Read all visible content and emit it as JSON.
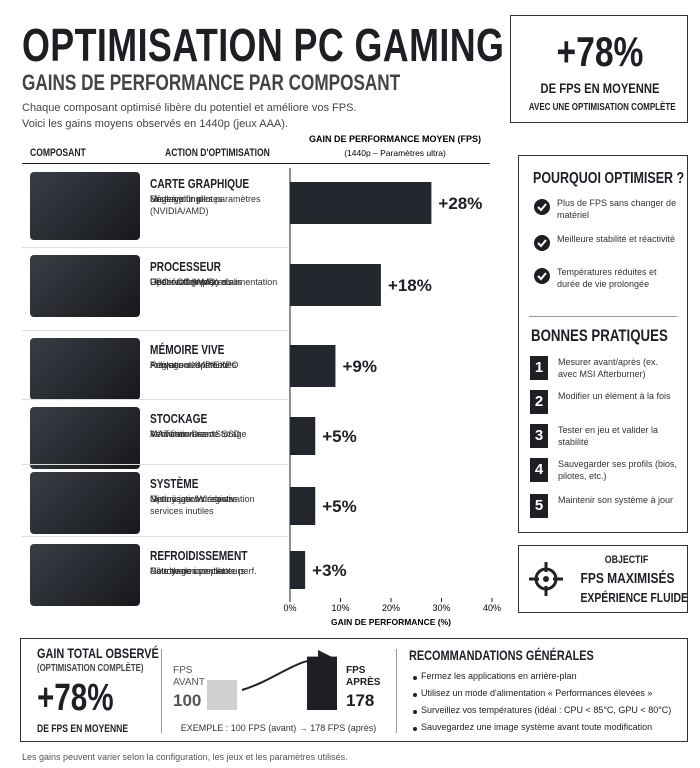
{
  "header": {
    "title": "OPTIMISATION PC GAMING",
    "subtitle": "GAINS DE PERFORMANCE PAR COMPOSANT",
    "intro": [
      "Chaque composant optimisé libère du potentiel et améliore vos FPS.",
      "Voici les gains moyens observés en 1440p (jeux AAA)."
    ]
  },
  "highlight": {
    "value": "+78%",
    "label": "DE FPS EN MOYENNE",
    "note": "AVEC UNE OPTIMISATION COMPLÈTE"
  },
  "columns": {
    "component": "COMPOSANT",
    "action": "ACTION D'OPTIMISATION"
  },
  "components": [
    {
      "actions": [
        "Mise à jour pilotes",
        "Réglage fin des paramètres (NVIDIA/AMD)",
        "Undervolting"
      ]
    },
    {
      "actions": [
        "Optimisation plan d'alimentation",
        "PBO / CO (AMD) ou",
        "Undervolt (Intel)",
        "Gestion des processus"
      ]
    },
    {
      "actions": [
        "Activation XMP/EXPO",
        "Réglage des latences",
        "Fréquence optimale"
      ]
    },
    {
      "actions": [
        "Vérification santé SSD",
        "MAJ firmware",
        "Activation DirectStorage"
      ]
    },
    {
      "actions": [
        "Nettoyage & désactivation services inutiles",
        "Mise à jour Windows",
        "Optimisations registre"
      ]
    },
    {
      "actions": [
        "Nettoyage complet",
        "Pâte thermique haute perf.",
        "Courbe des ventilateurs"
      ]
    }
  ],
  "chart_data": {
    "type": "bar",
    "orientation": "horizontal",
    "title": "GAIN DE PERFORMANCE MOYEN (FPS)",
    "subtitle": "(1440p – Paramètres ultra)",
    "categories": [
      "CARTE GRAPHIQUE",
      "PROCESSEUR",
      "MÉMOIRE VIVE",
      "STOCKAGE",
      "SYSTÈME",
      "REFROIDISSEMENT"
    ],
    "values": [
      28,
      18,
      9,
      5,
      5,
      3
    ],
    "value_labels": [
      "+28%",
      "+18%",
      "+9%",
      "+5%",
      "+5%",
      "+3%"
    ],
    "color": "#23262d",
    "xlim": [
      0,
      40
    ],
    "xticks": [
      {
        "value": 0,
        "label": "0%"
      },
      {
        "value": 10,
        "label": "10%"
      },
      {
        "value": 20,
        "label": "20%"
      },
      {
        "value": 30,
        "label": "30%"
      },
      {
        "value": 40,
        "label": "40%"
      }
    ],
    "xlabel": "GAIN DE PERFORMANCE (%)"
  },
  "why": {
    "title": "POURQUOI OPTIMISER ?",
    "items": [
      "Plus de FPS sans changer de matériel",
      "Meilleure stabilité et réactivité",
      "Températures réduites et durée de vie prolongée"
    ]
  },
  "practices": {
    "title": "BONNES PRATIQUES",
    "items": [
      {
        "number": 1,
        "text": "Mesurer avant/après (ex. avec MSI Afterburner)"
      },
      {
        "number": 2,
        "text": "Modifier un élément à la fois"
      },
      {
        "number": 3,
        "text": "Tester en jeu et valider la stabilité"
      },
      {
        "number": 4,
        "text": "Sauvegarder ses profils (bios, pilotes, etc.)"
      },
      {
        "number": 5,
        "text": "Maintenir son système à jour"
      }
    ]
  },
  "objective": {
    "label": "OBJECTIF",
    "line1": "FPS MAXIMISÉS",
    "line2": "EXPÉRIENCE FLUIDE"
  },
  "total": {
    "title": "GAIN TOTAL OBSERVÉ",
    "subtitle": "(OPTIMISATION COMPLÈTE)",
    "value": "+78%",
    "label": "DE FPS EN MOYENNE"
  },
  "example": {
    "before": {
      "label": "FPS AVANT",
      "value": 100
    },
    "after": {
      "label": "FPS APRÈS",
      "value": 178
    },
    "caption": "EXEMPLE : 100 FPS (avant) → 178 FPS (après)"
  },
  "recommendations": {
    "title": "RECOMMANDATIONS GÉNÉRALES",
    "items": [
      "Fermez les applications en arrière-plan",
      "Utilisez un mode d'alimentation « Performances élevées »",
      "Surveillez vos températures (idéal : CPU < 85°C, GPU < 80°C)",
      "Sauvegardez une image système avant toute modification"
    ]
  },
  "footer": "Les gains peuvent varier selon la configuration, les jeux et les paramètres utilisés."
}
